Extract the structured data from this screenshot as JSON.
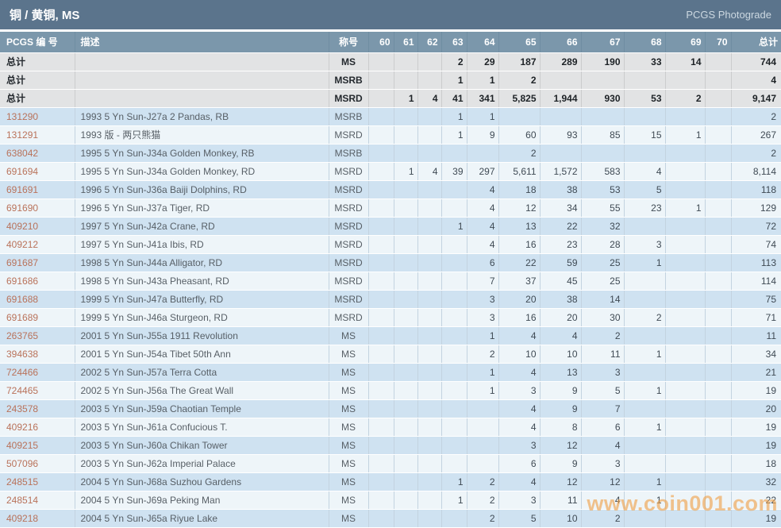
{
  "header": {
    "title": "铜 / 黄铜, MS",
    "brand": "PCGS Photograde"
  },
  "table": {
    "col_id_label": "PCGS 编 号",
    "col_desc_label": "描述",
    "col_desig_label": "称号",
    "col_total_label": "总计",
    "grade_columns": [
      "60",
      "61",
      "62",
      "63",
      "64",
      "65",
      "66",
      "67",
      "68",
      "69",
      "70"
    ],
    "total_rows": [
      {
        "label": "总计",
        "designation": "MS",
        "grades": [
          "",
          "",
          "",
          "2",
          "29",
          "187",
          "289",
          "190",
          "33",
          "14",
          ""
        ],
        "total": "744"
      },
      {
        "label": "总计",
        "designation": "MSRB",
        "grades": [
          "",
          "",
          "",
          "1",
          "1",
          "2",
          "",
          "",
          "",
          "",
          ""
        ],
        "total": "4"
      },
      {
        "label": "总计",
        "designation": "MSRD",
        "grades": [
          "",
          "1",
          "4",
          "41",
          "341",
          "5,825",
          "1,944",
          "930",
          "53",
          "2",
          ""
        ],
        "total": "9,147"
      }
    ],
    "rows": [
      {
        "id": "131290",
        "desc": "1993 5 Yn Sun-J27a 2 Pandas, RB",
        "designation": "MSRB",
        "grades": [
          "",
          "",
          "",
          "1",
          "1",
          "",
          "",
          "",
          "",
          "",
          ""
        ],
        "total": "2"
      },
      {
        "id": "131291",
        "desc": "1993 版 - 两只熊猫",
        "designation": "MSRD",
        "grades": [
          "",
          "",
          "",
          "1",
          "9",
          "60",
          "93",
          "85",
          "15",
          "1",
          ""
        ],
        "total": "267"
      },
      {
        "id": "638042",
        "desc": "1995 5 Yn Sun-J34a Golden Monkey, RB",
        "designation": "MSRB",
        "grades": [
          "",
          "",
          "",
          "",
          "",
          "2",
          "",
          "",
          "",
          "",
          ""
        ],
        "total": "2"
      },
      {
        "id": "691694",
        "desc": "1995 5 Yn Sun-J34a Golden Monkey, RD",
        "designation": "MSRD",
        "grades": [
          "",
          "1",
          "4",
          "39",
          "297",
          "5,611",
          "1,572",
          "583",
          "4",
          "",
          ""
        ],
        "total": "8,114"
      },
      {
        "id": "691691",
        "desc": "1996 5 Yn Sun-J36a Baiji Dolphins, RD",
        "designation": "MSRD",
        "grades": [
          "",
          "",
          "",
          "",
          "4",
          "18",
          "38",
          "53",
          "5",
          "",
          ""
        ],
        "total": "118"
      },
      {
        "id": "691690",
        "desc": "1996 5 Yn Sun-J37a Tiger, RD",
        "designation": "MSRD",
        "grades": [
          "",
          "",
          "",
          "",
          "4",
          "12",
          "34",
          "55",
          "23",
          "1",
          ""
        ],
        "total": "129"
      },
      {
        "id": "409210",
        "desc": "1997 5 Yn Sun-J42a Crane, RD",
        "designation": "MSRD",
        "grades": [
          "",
          "",
          "",
          "1",
          "4",
          "13",
          "22",
          "32",
          "",
          "",
          ""
        ],
        "total": "72"
      },
      {
        "id": "409212",
        "desc": "1997 5 Yn Sun-J41a Ibis, RD",
        "designation": "MSRD",
        "grades": [
          "",
          "",
          "",
          "",
          "4",
          "16",
          "23",
          "28",
          "3",
          "",
          ""
        ],
        "total": "74"
      },
      {
        "id": "691687",
        "desc": "1998 5 Yn Sun-J44a Alligator, RD",
        "designation": "MSRD",
        "grades": [
          "",
          "",
          "",
          "",
          "6",
          "22",
          "59",
          "25",
          "1",
          "",
          ""
        ],
        "total": "113"
      },
      {
        "id": "691686",
        "desc": "1998 5 Yn Sun-J43a Pheasant, RD",
        "designation": "MSRD",
        "grades": [
          "",
          "",
          "",
          "",
          "7",
          "37",
          "45",
          "25",
          "",
          "",
          ""
        ],
        "total": "114"
      },
      {
        "id": "691688",
        "desc": "1999 5 Yn Sun-J47a Butterfly, RD",
        "designation": "MSRD",
        "grades": [
          "",
          "",
          "",
          "",
          "3",
          "20",
          "38",
          "14",
          "",
          "",
          ""
        ],
        "total": "75"
      },
      {
        "id": "691689",
        "desc": "1999 5 Yn Sun-J46a Sturgeon, RD",
        "designation": "MSRD",
        "grades": [
          "",
          "",
          "",
          "",
          "3",
          "16",
          "20",
          "30",
          "2",
          "",
          ""
        ],
        "total": "71"
      },
      {
        "id": "263765",
        "desc": "2001 5 Yn Sun-J55a 1911 Revolution",
        "designation": "MS",
        "grades": [
          "",
          "",
          "",
          "",
          "1",
          "4",
          "4",
          "2",
          "",
          "",
          ""
        ],
        "total": "11"
      },
      {
        "id": "394638",
        "desc": "2001 5 Yn Sun-J54a Tibet 50th Ann",
        "designation": "MS",
        "grades": [
          "",
          "",
          "",
          "",
          "2",
          "10",
          "10",
          "11",
          "1",
          "",
          ""
        ],
        "total": "34"
      },
      {
        "id": "724466",
        "desc": "2002 5 Yn Sun-J57a Terra Cotta",
        "designation": "MS",
        "grades": [
          "",
          "",
          "",
          "",
          "1",
          "4",
          "13",
          "3",
          "",
          "",
          ""
        ],
        "total": "21"
      },
      {
        "id": "724465",
        "desc": "2002 5 Yn Sun-J56a The Great Wall",
        "designation": "MS",
        "grades": [
          "",
          "",
          "",
          "",
          "1",
          "3",
          "9",
          "5",
          "1",
          "",
          ""
        ],
        "total": "19"
      },
      {
        "id": "243578",
        "desc": "2003 5 Yn Sun-J59a Chaotian Temple",
        "designation": "MS",
        "grades": [
          "",
          "",
          "",
          "",
          "",
          "4",
          "9",
          "7",
          "",
          "",
          ""
        ],
        "total": "20"
      },
      {
        "id": "409216",
        "desc": "2003 5 Yn Sun-J61a Confucious T.",
        "designation": "MS",
        "grades": [
          "",
          "",
          "",
          "",
          "",
          "4",
          "8",
          "6",
          "1",
          "",
          ""
        ],
        "total": "19"
      },
      {
        "id": "409215",
        "desc": "2003 5 Yn Sun-J60a Chikan Tower",
        "designation": "MS",
        "grades": [
          "",
          "",
          "",
          "",
          "",
          "3",
          "12",
          "4",
          "",
          "",
          ""
        ],
        "total": "19"
      },
      {
        "id": "507096",
        "desc": "2003 5 Yn Sun-J62a Imperial Palace",
        "designation": "MS",
        "grades": [
          "",
          "",
          "",
          "",
          "",
          "6",
          "9",
          "3",
          "",
          "",
          ""
        ],
        "total": "18"
      },
      {
        "id": "248515",
        "desc": "2004 5 Yn Sun-J68a Suzhou Gardens",
        "designation": "MS",
        "grades": [
          "",
          "",
          "",
          "1",
          "2",
          "4",
          "12",
          "12",
          "1",
          "",
          ""
        ],
        "total": "32"
      },
      {
        "id": "248514",
        "desc": "2004 5 Yn Sun-J69a Peking Man",
        "designation": "MS",
        "grades": [
          "",
          "",
          "",
          "1",
          "2",
          "3",
          "11",
          "4",
          "1",
          "",
          ""
        ],
        "total": "22"
      },
      {
        "id": "409218",
        "desc": "2004 5 Yn Sun-J65a Riyue Lake",
        "designation": "MS",
        "grades": [
          "",
          "",
          "",
          "",
          "2",
          "5",
          "10",
          "2",
          "",
          "",
          ""
        ],
        "total": "19"
      }
    ]
  },
  "watermark": {
    "text": "www.coin001.com",
    "color": "#f0a148"
  },
  "colors": {
    "titlebar_bg": "#5b748c",
    "header_bg": "#7b97ab",
    "row_blue": "#cfe2f1",
    "row_light": "#eef5f9",
    "row_gray": "#e2e3e4",
    "id_link": "#b9725a"
  }
}
